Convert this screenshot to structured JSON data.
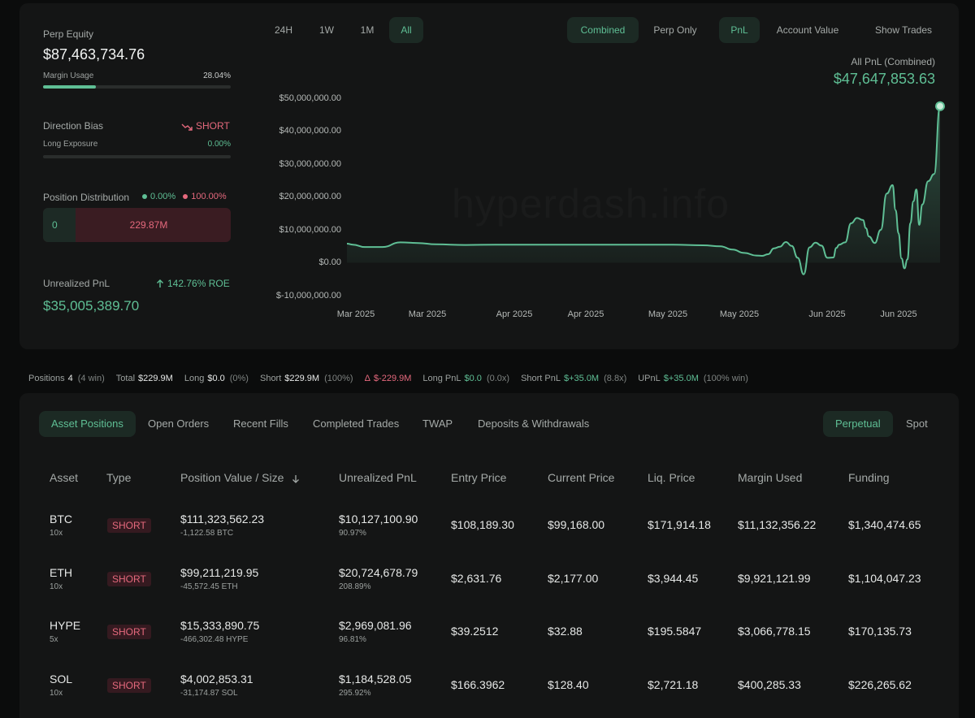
{
  "account": {
    "perp_equity_label": "Perp Equity",
    "perp_equity_value": "$87,463,734.76",
    "margin_usage_label": "Margin Usage",
    "margin_usage_value": "28.04%",
    "margin_usage_fraction": 0.2804,
    "direction_bias_label": "Direction Bias",
    "direction_bias_icon": "trend-down-icon",
    "direction_bias_value": "SHORT",
    "long_exposure_label": "Long Exposure",
    "long_exposure_value": "0.00%",
    "long_exposure_fraction": 0,
    "position_distribution_label": "Position Distribution",
    "dist_long_pct": "0.00%",
    "dist_short_pct": "100.00%",
    "dist_long_value": "0",
    "dist_short_value": "229.87M",
    "unrealized_pnl_label": "Unrealized PnL",
    "roe_value": "142.76% ROE",
    "roe_icon": "arrow-up-icon",
    "unrealized_pnl_value": "$35,005,389.70"
  },
  "chart_controls": {
    "ranges": [
      {
        "label": "24H",
        "active": false
      },
      {
        "label": "1W",
        "active": false
      },
      {
        "label": "1M",
        "active": false
      },
      {
        "label": "All",
        "active": true
      }
    ],
    "scope": [
      {
        "label": "Combined",
        "active": true
      },
      {
        "label": "Perp Only",
        "active": false
      }
    ],
    "metric": [
      {
        "label": "PnL",
        "active": true
      },
      {
        "label": "Account Value",
        "active": false
      }
    ],
    "show_trades_label": "Show Trades"
  },
  "chart_header": {
    "title": "All PnL (Combined)",
    "value": "$47,647,853.63"
  },
  "watermark": "hyperdash.info",
  "chart_data": {
    "type": "area",
    "title": "All PnL (Combined)",
    "ylim": [
      -10000000,
      50000000
    ],
    "y_ticks": [
      "$50,000,000.00",
      "$40,000,000.00",
      "$30,000,000.00",
      "$20,000,000.00",
      "$10,000,000.00",
      "$0.00",
      "$-10,000,000.00"
    ],
    "x_ticks": [
      "Mar 2025",
      "Mar 2025",
      "Apr 2025",
      "Apr 2025",
      "May 2025",
      "May 2025",
      "Jun 2025",
      "Jun 2025"
    ],
    "grid": false,
    "color": "#5fbf95",
    "series": [
      {
        "x": [
          0.0,
          0.01,
          0.03,
          0.06,
          0.09,
          0.12,
          0.15,
          0.2,
          0.25,
          0.3,
          0.35,
          0.4,
          0.45,
          0.5,
          0.55,
          0.6,
          0.63,
          0.65,
          0.67,
          0.69,
          0.7,
          0.71,
          0.72,
          0.73,
          0.74,
          0.75,
          0.76,
          0.77,
          0.78,
          0.79,
          0.8,
          0.81,
          0.82,
          0.825,
          0.83,
          0.84,
          0.85,
          0.86,
          0.87,
          0.875,
          0.88,
          0.89,
          0.9,
          0.91,
          0.92,
          0.925,
          0.93,
          0.935,
          0.94,
          0.945,
          0.95,
          0.955,
          0.96,
          0.965,
          0.97,
          0.98,
          0.99,
          1.0
        ],
        "values": [
          5800000,
          5500000,
          4800000,
          4800000,
          6200000,
          6000000,
          5600000,
          5400000,
          5500000,
          5500000,
          5500000,
          5500000,
          5500000,
          5500000,
          5500000,
          5300000,
          5000000,
          4000000,
          3000000,
          2200000,
          2100000,
          2600000,
          4400000,
          4900000,
          6300000,
          5100000,
          1500000,
          -3500000,
          4700000,
          6100000,
          5200000,
          1500000,
          1600000,
          4500000,
          5500000,
          6200000,
          12000000,
          13600000,
          13000000,
          10500000,
          8000000,
          6000000,
          10000000,
          21000000,
          23600000,
          16000000,
          9000000,
          1300000,
          -1700000,
          1000000,
          12000000,
          18700000,
          22300000,
          11500000,
          17700000,
          24800000,
          27000000,
          47600000
        ]
      }
    ]
  },
  "summary": {
    "positions_label": "Positions",
    "positions_count": "4",
    "positions_note": "(4 win)",
    "total_label": "Total",
    "total_value": "$229.9M",
    "long_label": "Long",
    "long_value": "$0.0",
    "long_note": "(0%)",
    "short_label": "Short",
    "short_value": "$229.9M",
    "short_note": "(100%)",
    "delta_label": "Δ",
    "delta_value": "$-229.9M",
    "long_pnl_label": "Long PnL",
    "long_pnl_value": "$0.0",
    "long_pnl_note": "(0.0x)",
    "short_pnl_label": "Short PnL",
    "short_pnl_value": "$+35.0M",
    "short_pnl_note": "(8.8x)",
    "upnl_label": "UPnL",
    "upnl_value": "$+35.0M",
    "upnl_note": "(100% win)"
  },
  "tabs": [
    {
      "label": "Asset Positions",
      "active": true
    },
    {
      "label": "Open Orders",
      "active": false
    },
    {
      "label": "Recent Fills",
      "active": false
    },
    {
      "label": "Completed Trades",
      "active": false
    },
    {
      "label": "TWAP",
      "active": false
    },
    {
      "label": "Deposits & Withdrawals",
      "active": false
    }
  ],
  "market_tabs": [
    {
      "label": "Perpetual",
      "active": true
    },
    {
      "label": "Spot",
      "active": false
    }
  ],
  "table": {
    "columns": [
      "Asset",
      "Type",
      "Position Value / Size",
      "Unrealized PnL",
      "Entry Price",
      "Current Price",
      "Liq. Price",
      "Margin Used",
      "Funding"
    ],
    "sort_icon": "arrow-down-icon",
    "rows": [
      {
        "asset": "BTC",
        "leverage": "10x",
        "type": "SHORT",
        "value": "$111,323,562.23",
        "size": "-1,122.58 BTC",
        "pnl": "$10,127,100.90",
        "pnl_pct": "90.97%",
        "entry": "$108,189.30",
        "current": "$99,168.00",
        "liq": "$171,914.18",
        "margin": "$11,132,356.22",
        "funding": "$1,340,474.65"
      },
      {
        "asset": "ETH",
        "leverage": "10x",
        "type": "SHORT",
        "value": "$99,211,219.95",
        "size": "-45,572.45 ETH",
        "pnl": "$20,724,678.79",
        "pnl_pct": "208.89%",
        "entry": "$2,631.76",
        "current": "$2,177.00",
        "liq": "$3,944.45",
        "margin": "$9,921,121.99",
        "funding": "$1,104,047.23"
      },
      {
        "asset": "HYPE",
        "leverage": "5x",
        "type": "SHORT",
        "value": "$15,333,890.75",
        "size": "-466,302.48 HYPE",
        "pnl": "$2,969,081.96",
        "pnl_pct": "96.81%",
        "entry": "$39.2512",
        "current": "$32.88",
        "liq": "$195.5847",
        "margin": "$3,066,778.15",
        "funding": "$170,135.73"
      },
      {
        "asset": "SOL",
        "leverage": "10x",
        "type": "SHORT",
        "value": "$4,002,853.31",
        "size": "-31,174.87 SOL",
        "pnl": "$1,184,528.05",
        "pnl_pct": "295.92%",
        "entry": "$166.3962",
        "current": "$128.40",
        "liq": "$2,721.18",
        "margin": "$400,285.33",
        "funding": "$226,265.62"
      }
    ]
  }
}
